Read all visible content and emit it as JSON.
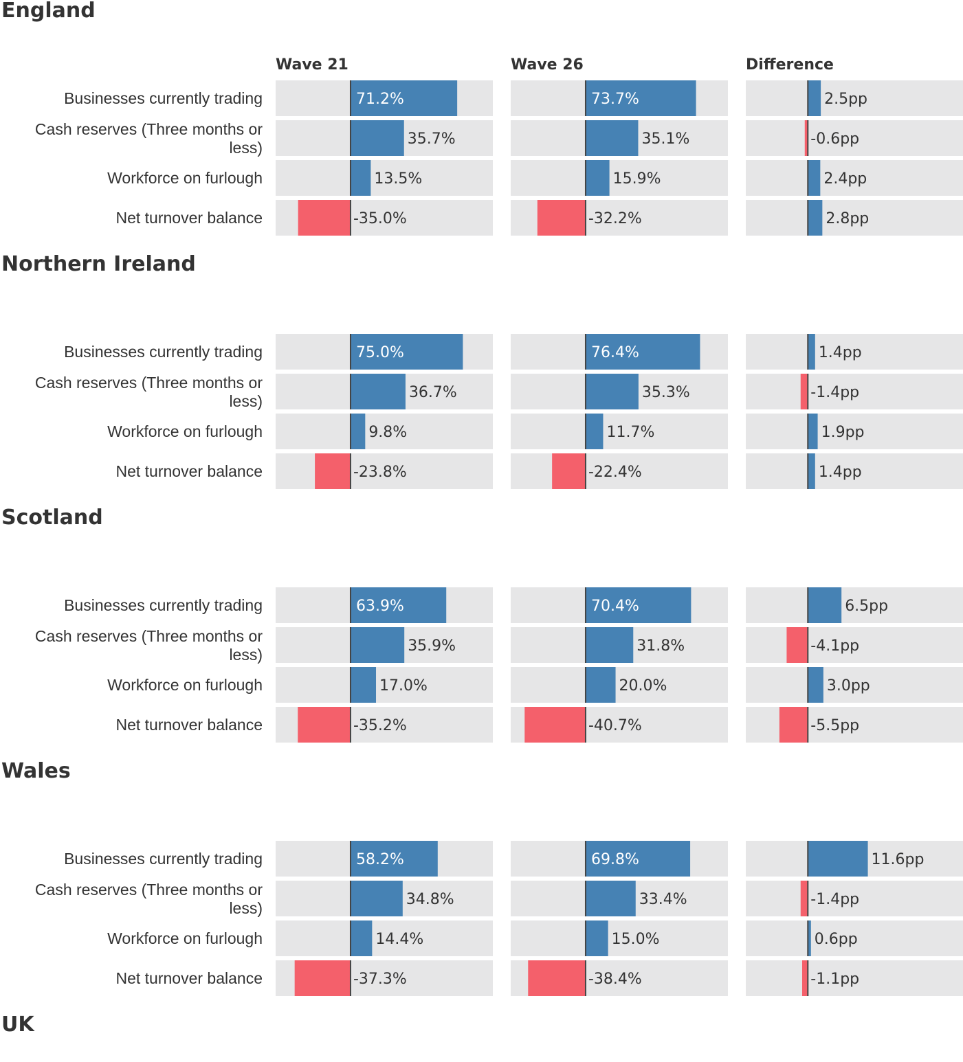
{
  "colors": {
    "positive": "#4682b4",
    "negative": "#f4606b",
    "background": "#e6e6e7",
    "baseline": "#444444",
    "text": "#333333",
    "inside_text": "#ffffff"
  },
  "chart_data": {
    "type": "bar",
    "orientation": "horizontal",
    "columns": [
      "Wave 21",
      "Wave 26",
      "Difference"
    ],
    "categories": [
      "Businesses currently trading",
      "Cash reserves (Three months or less)",
      "Workforce on furlough",
      "Net turnover balance"
    ],
    "wave_axis": [
      -50,
      95
    ],
    "difference_axis": [
      -12,
      30
    ],
    "regions": [
      {
        "name": "England",
        "wave21": [
          71.2,
          35.7,
          13.5,
          -35.0
        ],
        "wave21_labels": [
          "71.2%",
          "35.7%",
          "13.5%",
          "-35.0%"
        ],
        "wave26": [
          73.7,
          35.1,
          15.9,
          -32.2
        ],
        "wave26_labels": [
          "73.7%",
          "35.1%",
          "15.9%",
          "-32.2%"
        ],
        "difference": [
          2.5,
          -0.6,
          2.4,
          2.8
        ],
        "difference_labels": [
          "2.5pp",
          "-0.6pp",
          "2.4pp",
          "2.8pp"
        ]
      },
      {
        "name": "Northern Ireland",
        "wave21": [
          75.0,
          36.7,
          9.8,
          -23.8
        ],
        "wave21_labels": [
          "75.0%",
          "36.7%",
          "9.8%",
          "-23.8%"
        ],
        "wave26": [
          76.4,
          35.3,
          11.7,
          -22.4
        ],
        "wave26_labels": [
          "76.4%",
          "35.3%",
          "11.7%",
          "-22.4%"
        ],
        "difference": [
          1.4,
          -1.4,
          1.9,
          1.4
        ],
        "difference_labels": [
          "1.4pp",
          "-1.4pp",
          "1.9pp",
          "1.4pp"
        ]
      },
      {
        "name": "Scotland",
        "wave21": [
          63.9,
          35.9,
          17.0,
          -35.2
        ],
        "wave21_labels": [
          "63.9%",
          "35.9%",
          "17.0%",
          "-35.2%"
        ],
        "wave26": [
          70.4,
          31.8,
          20.0,
          -40.7
        ],
        "wave26_labels": [
          "70.4%",
          "31.8%",
          "20.0%",
          "-40.7%"
        ],
        "difference": [
          6.5,
          -4.1,
          3.0,
          -5.5
        ],
        "difference_labels": [
          "6.5pp",
          "-4.1pp",
          "3.0pp",
          "-5.5pp"
        ]
      },
      {
        "name": "Wales",
        "wave21": [
          58.2,
          34.8,
          14.4,
          -37.3
        ],
        "wave21_labels": [
          "58.2%",
          "34.8%",
          "14.4%",
          "-37.3%"
        ],
        "wave26": [
          69.8,
          33.4,
          15.0,
          -38.4
        ],
        "wave26_labels": [
          "69.8%",
          "33.4%",
          "15.0%",
          "-38.4%"
        ],
        "difference": [
          11.6,
          -1.4,
          0.6,
          -1.1
        ],
        "difference_labels": [
          "11.6pp",
          "-1.4pp",
          "0.6pp",
          "-1.1pp"
        ]
      },
      {
        "name": "UK"
      }
    ]
  }
}
